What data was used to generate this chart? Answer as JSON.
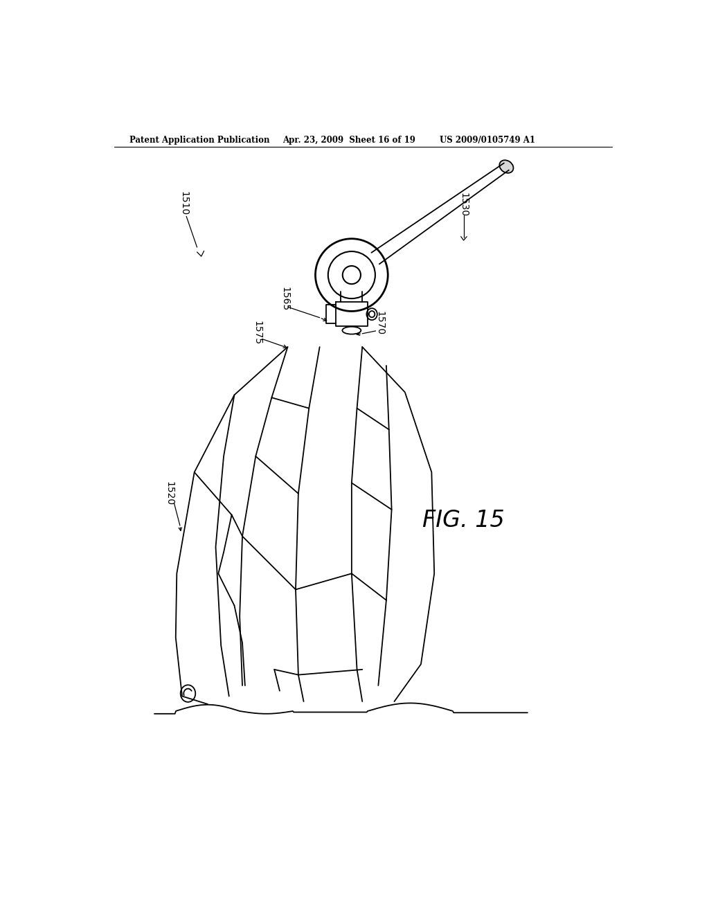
{
  "title_left": "Patent Application Publication",
  "title_mid": "Apr. 23, 2009  Sheet 16 of 19",
  "title_right": "US 2009/0105749 A1",
  "fig_label": "FIG. 15",
  "bg_color": "#ffffff",
  "line_color": "#000000",
  "label_1510": "1510",
  "label_1520": "1520",
  "label_1530": "1530",
  "label_1565": "1565",
  "label_1570": "1570",
  "label_1575": "1575"
}
